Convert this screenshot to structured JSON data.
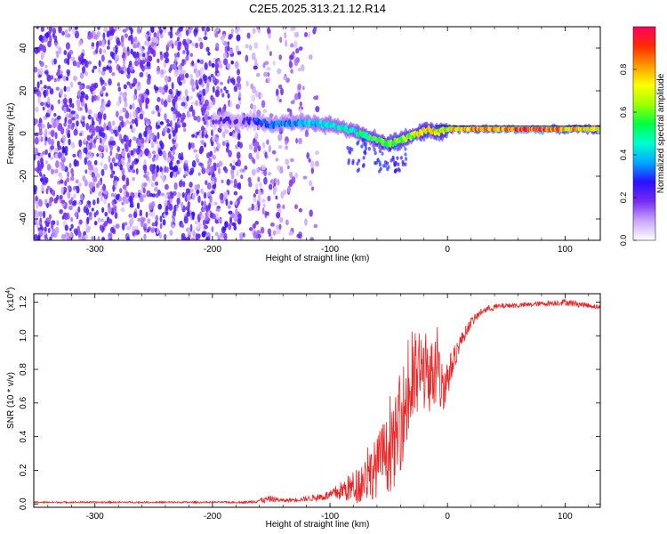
{
  "title": "C2E5.2025.313.21.12.R14",
  "chart_data": [
    {
      "type": "heatmap",
      "title": "",
      "xlabel": "Height of straight line (km)",
      "ylabel": "Frequency (Hz)",
      "xlim": [
        -352,
        130
      ],
      "ylim": [
        -50,
        50
      ],
      "xticks": [
        -300,
        -200,
        -100,
        0,
        100
      ],
      "xtick_labels": [
        "-300",
        "-200",
        "-100",
        "0",
        "100"
      ],
      "yticks": [
        -40,
        -20,
        0,
        20,
        40
      ],
      "ytick_labels": [
        "-40",
        "-20",
        "0",
        "20",
        "40"
      ],
      "colorbar": {
        "label": "Normalized spectral amplitude",
        "range": [
          0.0,
          1.0
        ],
        "ticks": [
          0.0,
          0.2,
          0.4,
          0.6,
          0.8
        ],
        "tick_labels": [
          "0.0",
          "0.2",
          "0.4",
          "0.6",
          "0.8"
        ],
        "colors": [
          "#ffffff",
          "#c9a6ff",
          "#7a2cf0",
          "#2a10ff",
          "#00a8ff",
          "#00ffd0",
          "#00ff40",
          "#a0ff00",
          "#ffff00",
          "#ff9900",
          "#ff2a00",
          "#ff0060"
        ]
      },
      "ridge": {
        "x": [
          -200,
          -165,
          -150,
          -140,
          -120,
          -100,
          -90,
          -80,
          -70,
          -60,
          -50,
          -40,
          -30,
          -20,
          -15,
          -10,
          0,
          20,
          40,
          60,
          80,
          100,
          130
        ],
        "y": [
          6,
          6,
          4,
          5,
          5,
          4,
          3,
          1,
          -1,
          -3,
          -5,
          -3,
          -1,
          1,
          2,
          0,
          2,
          2,
          2,
          2,
          2,
          2,
          2
        ],
        "amplitude": [
          0.2,
          0.3,
          0.35,
          0.35,
          0.4,
          0.45,
          0.45,
          0.5,
          0.55,
          0.6,
          0.6,
          0.65,
          0.7,
          0.75,
          0.8,
          0.75,
          0.8,
          0.85,
          0.9,
          0.95,
          0.95,
          0.85,
          0.75
        ]
      },
      "noise_region_x": [
        -352,
        -110
      ]
    },
    {
      "type": "line",
      "title": "",
      "xlabel": "Height of straight line (km)",
      "ylabel": "SNR (10 * v/v)",
      "scale_label": "(x10",
      "scale_exponent": "4",
      "scale_close": ")",
      "xlim": [
        -352,
        130
      ],
      "ylim": [
        -0.02,
        1.25
      ],
      "xticks": [
        -300,
        -200,
        -100,
        0,
        100
      ],
      "xtick_labels": [
        "-300",
        "-200",
        "-100",
        "0",
        "100"
      ],
      "yticks": [
        0.0,
        0.2,
        0.4,
        0.6,
        0.8,
        1.0,
        1.2
      ],
      "ytick_labels": [
        "0.0",
        "0.2",
        "0.4",
        "0.6",
        "0.8",
        "1.0",
        "1.2"
      ],
      "color": "#ee2222",
      "series": [
        {
          "name": "SNR",
          "x": [
            -352,
            -300,
            -250,
            -200,
            -170,
            -160,
            -150,
            -140,
            -120,
            -100,
            -90,
            -80,
            -70,
            -60,
            -55,
            -50,
            -45,
            -40,
            -35,
            -30,
            -25,
            -20,
            -15,
            -10,
            -5,
            0,
            5,
            10,
            20,
            30,
            40,
            50,
            60,
            80,
            100,
            110,
            120,
            130
          ],
          "y": [
            0.01,
            0.01,
            0.01,
            0.01,
            0.01,
            0.02,
            0.03,
            0.02,
            0.03,
            0.05,
            0.08,
            0.1,
            0.15,
            0.22,
            0.3,
            0.28,
            0.35,
            0.5,
            0.6,
            0.7,
            0.78,
            0.8,
            0.76,
            0.78,
            0.7,
            0.75,
            0.85,
            0.95,
            1.08,
            1.15,
            1.17,
            1.18,
            1.18,
            1.19,
            1.2,
            1.19,
            1.18,
            1.17
          ],
          "noise": [
            0.005,
            0.005,
            0.005,
            0.005,
            0.006,
            0.015,
            0.02,
            0.01,
            0.015,
            0.03,
            0.06,
            0.1,
            0.14,
            0.18,
            0.2,
            0.22,
            0.25,
            0.3,
            0.3,
            0.3,
            0.28,
            0.25,
            0.22,
            0.22,
            0.18,
            0.12,
            0.08,
            0.05,
            0.03,
            0.02,
            0.02,
            0.015,
            0.015,
            0.015,
            0.02,
            0.02,
            0.015,
            0.015
          ]
        }
      ]
    }
  ]
}
